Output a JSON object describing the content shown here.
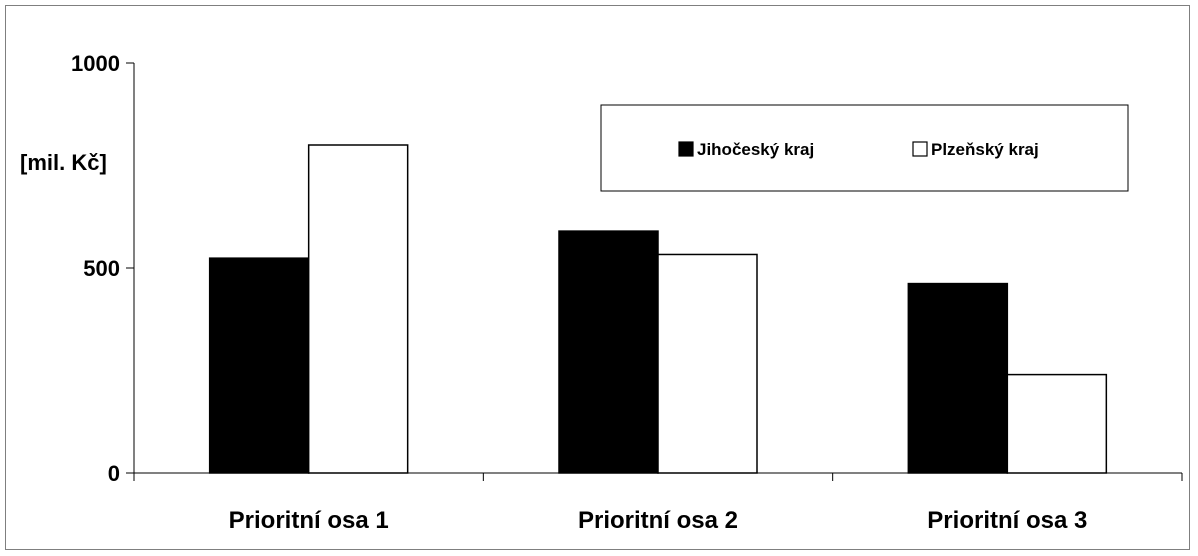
{
  "chart_data": {
    "type": "bar",
    "categories": [
      "Prioritní osa 1",
      "Prioritní osa 2",
      "Prioritní osa 3"
    ],
    "series": [
      {
        "name": "Jihočeský kraj",
        "values": [
          524,
          590,
          462
        ],
        "color": "#000000"
      },
      {
        "name": "Plzeňský kraj",
        "values": [
          800,
          533,
          240
        ],
        "color": "#ffffff"
      }
    ],
    "ylabel": "[mil. Kč]",
    "ylim": [
      0,
      1000
    ],
    "yticks": [
      0,
      500,
      1000
    ],
    "grid": false,
    "legend": {
      "position": "top-right",
      "boxed": true
    }
  }
}
